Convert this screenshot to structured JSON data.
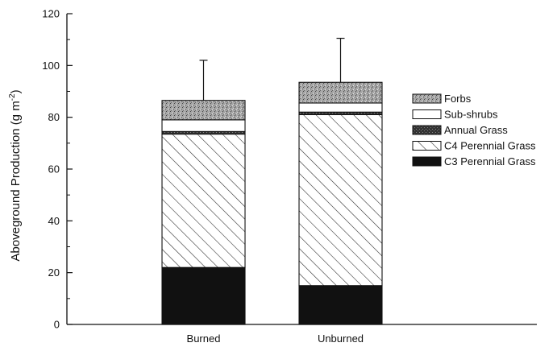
{
  "chart_data": {
    "type": "bar",
    "stacked": true,
    "categories": [
      "Burned",
      "Unburned"
    ],
    "ylabel": "Aboveground Production (g m",
    "ylabel_superscript": "-2",
    "ylabel_close": ")",
    "ylim": [
      0,
      120
    ],
    "yticks": [
      "0",
      "20",
      "40",
      "60",
      "80",
      "100",
      "120"
    ],
    "grid": false,
    "legend_position": "right",
    "series": [
      {
        "name": "C3 Perennial Grass",
        "values": [
          22,
          15
        ],
        "fill": "solid",
        "color": "#111111"
      },
      {
        "name": "C4 Perennial Grass",
        "values": [
          51.5,
          66
        ],
        "fill": "hatch",
        "color": "#333333"
      },
      {
        "name": "Annual Grass",
        "values": [
          1,
          1
        ],
        "fill": "dark-stipple",
        "color": "#2a2a2a"
      },
      {
        "name": "Sub-shrubs",
        "values": [
          4.5,
          3.5
        ],
        "fill": "white",
        "color": "#ffffff"
      },
      {
        "name": "Forbs",
        "values": [
          7.5,
          8
        ],
        "fill": "light-stipple",
        "color": "#9a9a9a"
      }
    ],
    "error_bars_upper": [
      102,
      110.5
    ]
  }
}
